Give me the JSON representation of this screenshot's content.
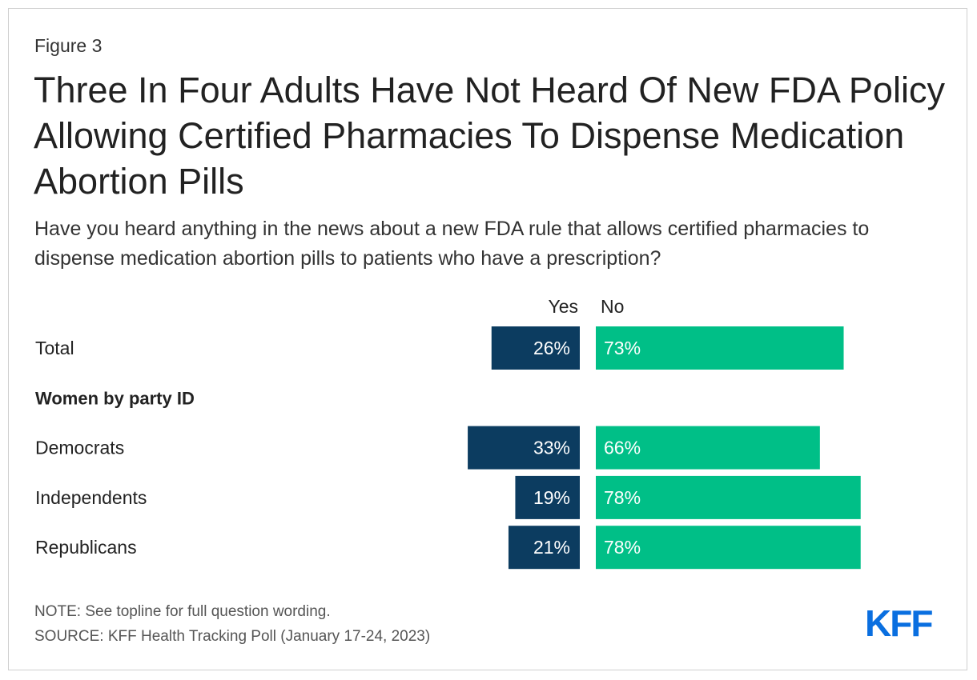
{
  "figure_label": "Figure 3",
  "title": "Three In Four Adults Have Not Heard Of New FDA Policy Allowing Certified Pharmacies To Dispense Medication Abortion Pills",
  "subtitle": "Have you heard anything in the news about a new FDA rule that allows certified pharmacies to dispense medication abortion pills to patients who have a prescription?",
  "note": "NOTE: See topline for full question wording.",
  "source": "SOURCE: KFF Health Tracking Poll (January 17-24, 2023)",
  "logo_text": "KFF",
  "colors": {
    "yes": "#0c3c60",
    "no": "#00bf87",
    "logo": "#0a6fe0"
  },
  "chart_data": {
    "type": "bar",
    "orientation": "horizontal-diverging",
    "legend": [
      "Yes",
      "No"
    ],
    "rows": [
      {
        "kind": "data",
        "label": "Total",
        "yes": 26,
        "no": 73,
        "yes_label": "26%",
        "no_label": "73%"
      },
      {
        "kind": "heading",
        "label": "Women by party ID"
      },
      {
        "kind": "data",
        "label": "Democrats",
        "yes": 33,
        "no": 66,
        "yes_label": "33%",
        "no_label": "66%"
      },
      {
        "kind": "data",
        "label": "Independents",
        "yes": 19,
        "no": 78,
        "yes_label": "19%",
        "no_label": "78%"
      },
      {
        "kind": "data",
        "label": "Republicans",
        "yes": 21,
        "no": 78,
        "yes_label": "21%",
        "no_label": "78%"
      }
    ],
    "unit": "%"
  }
}
